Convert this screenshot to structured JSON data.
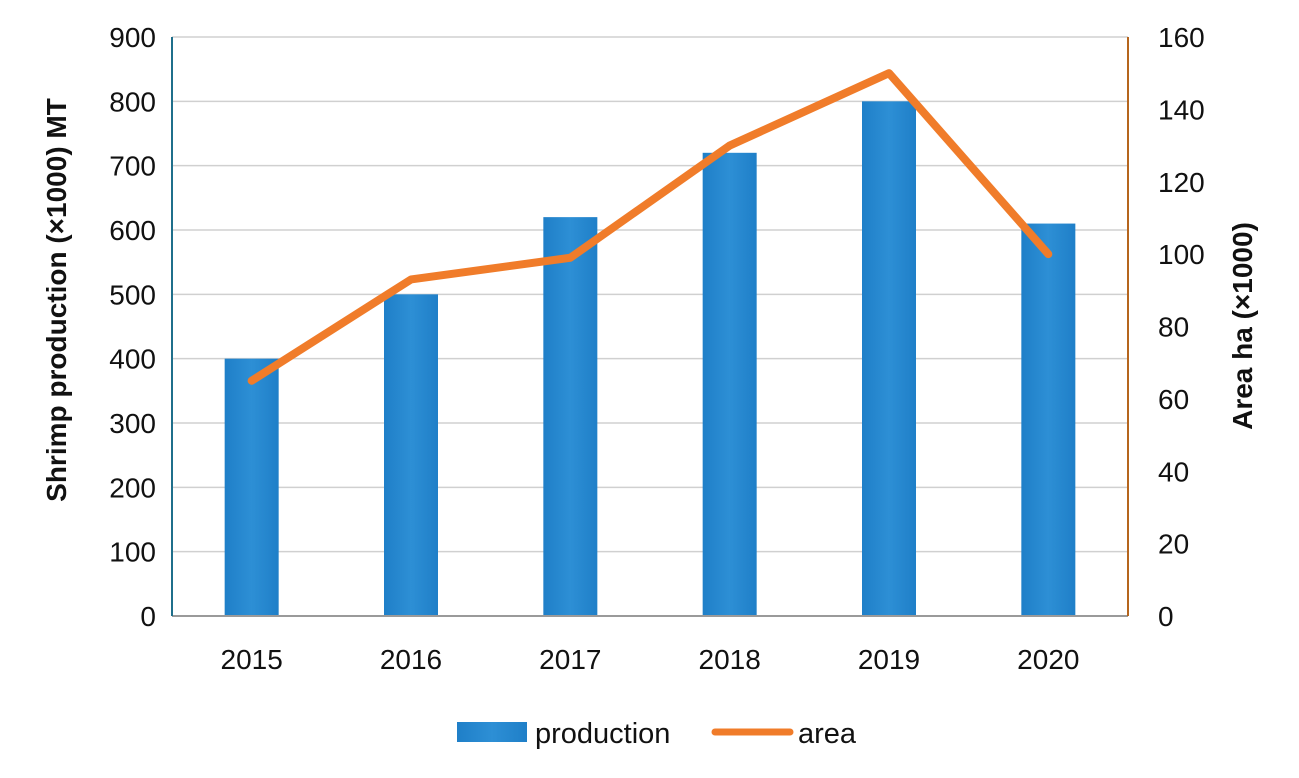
{
  "chart_data": {
    "type": "bar",
    "categories": [
      "2015",
      "2016",
      "2017",
      "2018",
      "2019",
      "2020"
    ],
    "series": [
      {
        "name": "production",
        "type": "bar",
        "axis": "left",
        "values": [
          400,
          500,
          620,
          720,
          800,
          610
        ],
        "color": "#2d8fd5"
      },
      {
        "name": "area",
        "type": "line",
        "axis": "right",
        "values": [
          65,
          93,
          99,
          130,
          150,
          100
        ],
        "color": "#f07c2a"
      }
    ],
    "ylabel": "Shrimp production (×1000) MT",
    "ylabel_right": "Area ha (×1000)",
    "xlabel": "",
    "title": "",
    "ylim": [
      0,
      900
    ],
    "yticks": [
      0,
      100,
      200,
      300,
      400,
      500,
      600,
      700,
      800,
      900
    ],
    "ylim_right": [
      0,
      160
    ],
    "yticks_right": [
      0,
      20,
      40,
      60,
      80,
      100,
      120,
      140,
      160
    ],
    "grid": true,
    "legend_position": "bottom-center",
    "colors": {
      "left_axis": "#1f6f8b",
      "right_axis": "#b5651d",
      "grid": "#d0d0d0",
      "baseline": "#9a9a9a"
    }
  }
}
